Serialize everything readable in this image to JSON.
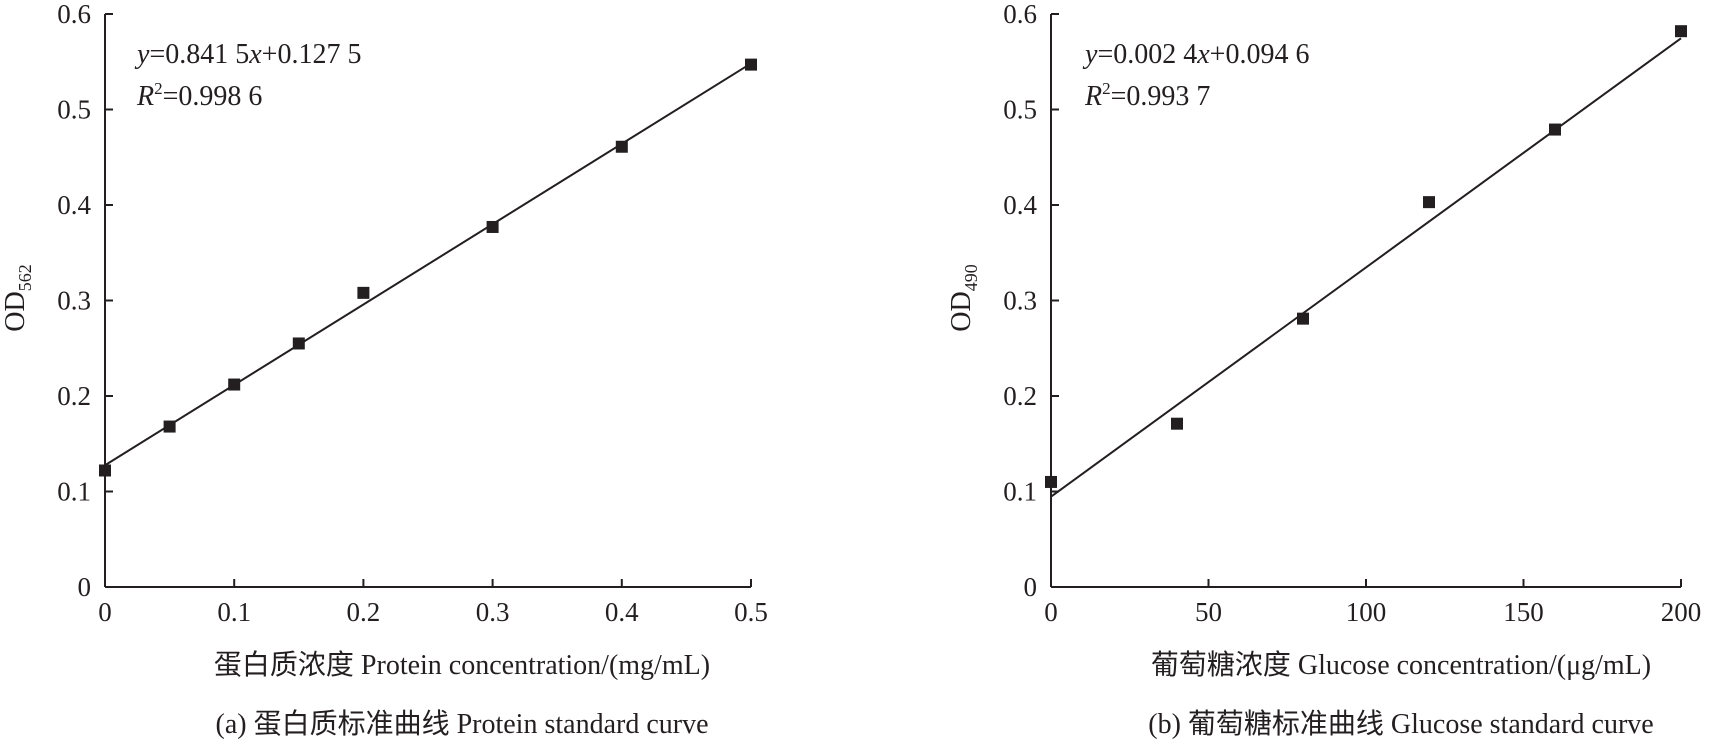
{
  "chart_data": [
    {
      "type": "scatter",
      "caption": "(a) 蛋白质标准曲线 Protein standard curve",
      "xlabel": "蛋白质浓度 Protein concentration/(mg/mL)",
      "ylabel_main": "OD",
      "ylabel_sub": "562",
      "xlim": [
        0,
        0.5
      ],
      "ylim": [
        0,
        0.6
      ],
      "xticks": [
        "0",
        "0.1",
        "0.2",
        "0.3",
        "0.4",
        "0.5"
      ],
      "yticks": [
        "0",
        "0.1",
        "0.2",
        "0.3",
        "0.4",
        "0.5",
        "0.6"
      ],
      "equation": {
        "y_sym": "y",
        "y_rest": "=0.841 5",
        "x_sym": "x",
        "x_rest": "+0.127 5",
        "r_sym": "R",
        "r_sup": "2",
        "r_rest": "=0.998 6"
      },
      "fit": {
        "slope": 0.8415,
        "intercept": 0.1275
      },
      "points": [
        {
          "x": 0,
          "y": 0.122
        },
        {
          "x": 0.05,
          "y": 0.168
        },
        {
          "x": 0.1,
          "y": 0.212
        },
        {
          "x": 0.15,
          "y": 0.255
        },
        {
          "x": 0.2,
          "y": 0.308
        },
        {
          "x": 0.3,
          "y": 0.377
        },
        {
          "x": 0.4,
          "y": 0.461
        },
        {
          "x": 0.5,
          "y": 0.547
        }
      ]
    },
    {
      "type": "scatter",
      "caption": "(b) 葡萄糖标准曲线 Glucose standard curve",
      "xlabel": "葡萄糖浓度 Glucose concentration/(μg/mL)",
      "ylabel_main": "OD",
      "ylabel_sub": "490",
      "xlim": [
        0,
        200
      ],
      "ylim": [
        0,
        0.6
      ],
      "xticks": [
        "0",
        "50",
        "100",
        "150",
        "200"
      ],
      "yticks": [
        "0",
        "0.1",
        "0.2",
        "0.3",
        "0.4",
        "0.5",
        "0.6"
      ],
      "equation": {
        "y_sym": "y",
        "y_rest": "=0.002 4",
        "x_sym": "x",
        "x_rest": "+0.094 6",
        "r_sym": "R",
        "r_sup": "2",
        "r_rest": "=0.993 7"
      },
      "fit": {
        "slope": 0.0024,
        "intercept": 0.0946
      },
      "points": [
        {
          "x": 0,
          "y": 0.11
        },
        {
          "x": 40,
          "y": 0.171
        },
        {
          "x": 80,
          "y": 0.281
        },
        {
          "x": 120,
          "y": 0.403
        },
        {
          "x": 160,
          "y": 0.479
        },
        {
          "x": 200,
          "y": 0.582
        }
      ]
    }
  ]
}
